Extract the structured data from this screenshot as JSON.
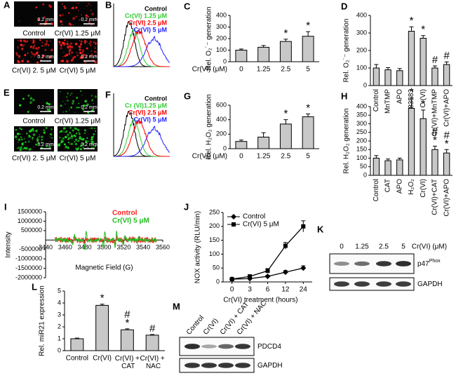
{
  "chart_data": [
    {
      "panel": "C",
      "type": "bar",
      "ylabel": "Rel. O₂˙⁻ generation",
      "xlabel": "Cr(VI) (μM)",
      "categories": [
        "0",
        "1.25",
        "2.5",
        "5"
      ],
      "values": [
        100,
        125,
        175,
        220
      ],
      "errors": [
        10,
        15,
        20,
        40
      ],
      "annotations": [
        null,
        null,
        "*",
        "*"
      ],
      "ylim": [
        0,
        400
      ],
      "yticks": [
        0,
        100,
        200,
        300,
        400
      ],
      "color": "#c8c8c8"
    },
    {
      "panel": "D",
      "type": "bar",
      "ylabel": "Rel. O₂˙⁻ generation",
      "categories": [
        "Control",
        "MnTMP",
        "APO",
        "LY83583",
        "Cr(VI)",
        "Cr(VI)+MnTMP",
        "Cr(VI)+APO"
      ],
      "values": [
        100,
        90,
        85,
        310,
        270,
        100,
        120
      ],
      "errors": [
        20,
        12,
        12,
        25,
        15,
        12,
        15
      ],
      "annotations": [
        null,
        null,
        null,
        "*",
        "*",
        "#",
        "#"
      ],
      "ylim": [
        0,
        400
      ],
      "yticks": [
        0,
        100,
        200,
        300,
        400
      ],
      "color": "#c8c8c8"
    },
    {
      "panel": "G",
      "type": "bar",
      "ylabel": "Rel. H₂O₂ generation",
      "xlabel": "Cr(VI) (μM)",
      "categories": [
        "0",
        "1.25",
        "2.5",
        "5"
      ],
      "values": [
        100,
        160,
        340,
        440
      ],
      "errors": [
        20,
        60,
        60,
        40
      ],
      "annotations": [
        null,
        null,
        "*",
        "*"
      ],
      "ylim": [
        0,
        600
      ],
      "yticks": [
        0,
        200,
        400,
        600
      ],
      "color": "#c8c8c8"
    },
    {
      "panel": "H",
      "type": "bar",
      "ylabel": "Rel. H₂O₂ generation",
      "categories": [
        "Control",
        "CAT",
        "APO",
        "H₂O₂",
        "Cr(VI)",
        "Cr(VI)+CAT",
        "Cr(VI)+APO"
      ],
      "values": [
        100,
        85,
        90,
        390,
        330,
        150,
        130
      ],
      "errors": [
        15,
        10,
        10,
        60,
        50,
        20,
        20
      ],
      "annotations": [
        null,
        null,
        null,
        "*",
        "*",
        "#*",
        "#*"
      ],
      "ylim": [
        0,
        400
      ],
      "yticks": [
        0,
        50,
        100,
        150,
        200,
        250,
        300,
        350,
        400
      ],
      "color": "#c8c8c8"
    },
    {
      "panel": "I",
      "type": "spectrum",
      "ylabel": "Intensity",
      "xlabel": "Magnetic Field (G)",
      "xlim": [
        3440,
        3560
      ],
      "xticks": [
        3440,
        3460,
        3480,
        3500,
        3520,
        3540,
        3560
      ],
      "ylim": [
        -2000000,
        1500000
      ],
      "yticks": [
        1500000,
        1000000,
        500000,
        -500000,
        -1000000,
        -1500000,
        -2000000
      ],
      "series": [
        {
          "name": "Control",
          "color": "#ff2020"
        },
        {
          "name": "Cr(VI) 5 μM",
          "color": "#22bb22"
        }
      ]
    },
    {
      "panel": "J",
      "type": "line",
      "ylabel": "NOX activity (RLU/min)",
      "xlabel": "Cr(VI) treatment (hours)",
      "categories": [
        "0",
        "3",
        "6",
        "12",
        "24"
      ],
      "ylim": [
        0,
        250
      ],
      "yticks": [
        0,
        50,
        100,
        150,
        200,
        250
      ],
      "series": [
        {
          "name": "Control",
          "color": "#000000",
          "marker": "diamond",
          "values": [
            10,
            12,
            20,
            35,
            50
          ],
          "errors": [
            2,
            3,
            4,
            6,
            8
          ]
        },
        {
          "name": "Cr(VI) 5 μM",
          "color": "#000000",
          "marker": "square",
          "values": [
            10,
            20,
            40,
            130,
            200
          ],
          "errors": [
            2,
            5,
            8,
            12,
            20
          ]
        }
      ]
    },
    {
      "panel": "L",
      "type": "bar",
      "ylabel": "Rel. miR21 expression",
      "categories": [
        "Control",
        "Cr(VI)",
        "Cr(VI) + CAT",
        "Cr(VI) + NAC"
      ],
      "values": [
        1,
        3.8,
        1.75,
        1.3
      ],
      "errors": [
        0.05,
        0.1,
        0.08,
        0.05
      ],
      "annotations": [
        null,
        "*",
        "#*",
        "#"
      ],
      "ylim": [
        0,
        5
      ],
      "yticks": [
        0,
        1,
        2,
        3,
        4,
        5
      ],
      "color": "#c8c8c8"
    }
  ],
  "panels": [
    {
      "panel": "A",
      "captions": [
        "Control",
        "Cr(VI) 1.25 μM",
        "Cr(VI) 2. 5 μM",
        "Cr(VI) 5 μM"
      ],
      "scale_bar": "0.2 mm",
      "color": "#ff2020"
    },
    {
      "panel": "B",
      "legend": [
        {
          "name": "Control",
          "color": "#000000"
        },
        {
          "name": "Cr(VI) 1.25 μM",
          "color": "#33cc33"
        },
        {
          "name": "Cr(VI) 2.5 μM",
          "color": "#ff0000"
        },
        {
          "name": "Cr(VI) 5 μM",
          "color": "#2222ff"
        }
      ]
    },
    {
      "panel": "E",
      "captions": [
        "Control",
        "Cr(VI) 1.25 μM",
        "Cr(VI) 2. 5 μM",
        "Cr(VI) 5 μM"
      ],
      "scale_bar": "0.2 mm",
      "color": "#22dd22"
    },
    {
      "panel": "F",
      "legend": [
        {
          "name": "Control",
          "color": "#000000"
        },
        {
          "name": "Cr (VI)1.25 μM",
          "color": "#33cc33"
        },
        {
          "name": "Cr(VI) 2.5 μM",
          "color": "#ff0000"
        },
        {
          "name": "Cr(VI) 5 μM",
          "color": "#2222ff"
        }
      ]
    },
    {
      "panel": "K",
      "lanes": [
        "0",
        "1.25",
        "2.5",
        "5"
      ],
      "unit": "Cr(VI) (μM)",
      "bands": [
        {
          "name": "p47",
          "sup": "Phox"
        },
        {
          "name": "GAPDH"
        }
      ]
    },
    {
      "panel": "M",
      "lanes": [
        "Control",
        "Cr(VI)",
        "Cr(VI) + CAT",
        "Cr(VI) + NAC"
      ],
      "bands": [
        {
          "name": "PDCD4"
        },
        {
          "name": "GAPDH"
        }
      ]
    }
  ]
}
